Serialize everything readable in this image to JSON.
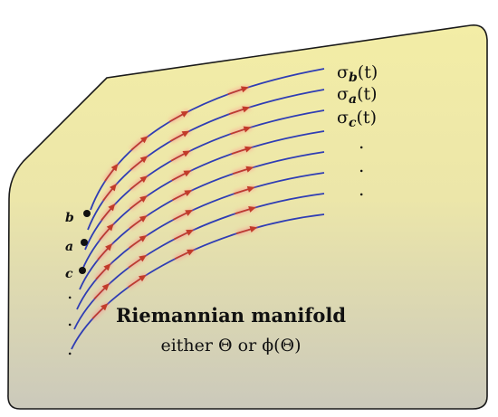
{
  "diagram": {
    "title": "Riemannian manifold",
    "subtitle": "either Θ or ϕ(Θ)",
    "curve_labels": [
      {
        "sym": "σ",
        "sub": "b",
        "arg": "(t)"
      },
      {
        "sym": "σ",
        "sub": "a",
        "arg": "(t)"
      },
      {
        "sym": "σ",
        "sub": "c",
        "arg": "(t)"
      }
    ],
    "points": [
      "b",
      "a",
      "c"
    ],
    "ellipsis_char": ".",
    "colors": {
      "surface_top": "#f3eda6",
      "surface_bottom": "#cbc9bb",
      "curve": "#2f3db4",
      "arrow": "#c23b2a",
      "arrow_glow": "#ff8a8a",
      "point": "#111111"
    }
  }
}
